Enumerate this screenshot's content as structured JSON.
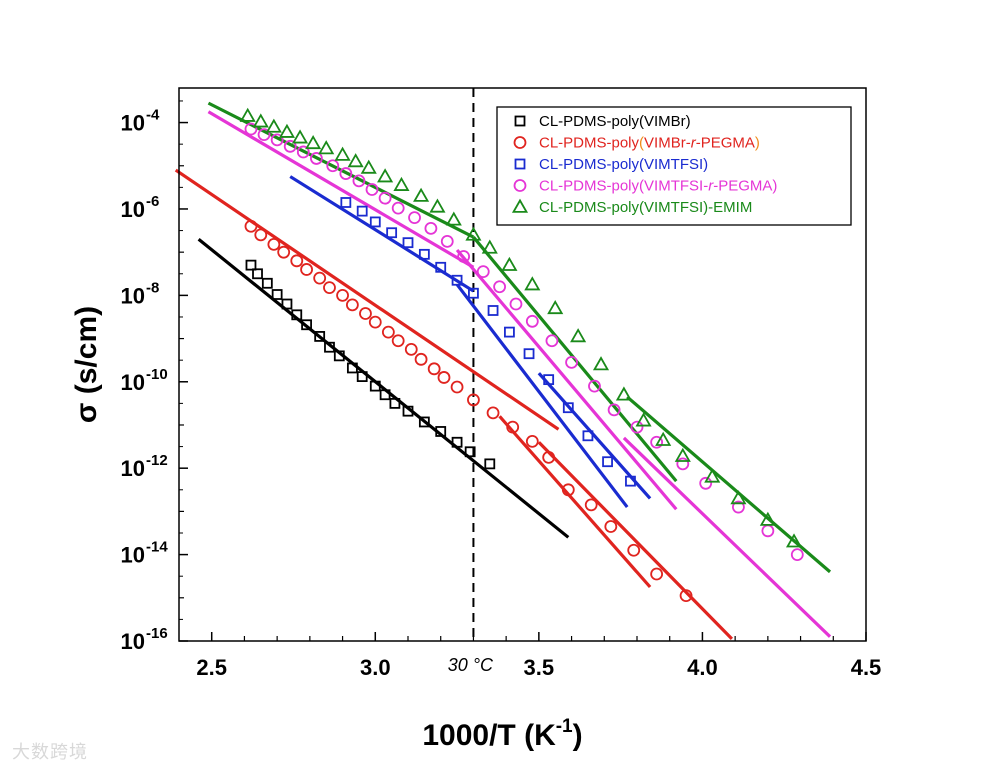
{
  "chart_data": {
    "type": "scatter",
    "title": "",
    "xlabel": "1000/T (K",
    "xlabel_sup": "-1",
    "xlabel_close": ")",
    "ylabel": "σ (s/cm)",
    "xlim": [
      2.4,
      4.5
    ],
    "ylog_exp_range": [
      -16,
      -3.2
    ],
    "xticks": [
      "2.5",
      "3.0",
      "3.5",
      "4.0",
      "4.5"
    ],
    "yticks": [
      {
        "base": "10",
        "exp": "-4",
        "value": -4
      },
      {
        "base": "10",
        "exp": "-6",
        "value": -6
      },
      {
        "base": "10",
        "exp": "-8",
        "value": -8
      },
      {
        "base": "10",
        "exp": "-10",
        "value": -10
      },
      {
        "base": "10",
        "exp": "-12",
        "value": -12
      },
      {
        "base": "10",
        "exp": "-14",
        "value": -14
      },
      {
        "base": "10",
        "exp": "-16",
        "value": -16
      }
    ],
    "vline": {
      "x": 3.3,
      "label": "30 °C"
    },
    "legend_position": "top-right",
    "series": [
      {
        "name": "CL-PDMS-poly(VIMBr)",
        "legend_parts": [
          {
            "t": "CL-PDMS-poly(VIMBr)",
            "c": "#000000",
            "i": false
          }
        ],
        "color": "#000000",
        "marker": "square",
        "x": [
          2.62,
          2.64,
          2.67,
          2.7,
          2.73,
          2.76,
          2.79,
          2.83,
          2.86,
          2.89,
          2.93,
          2.96,
          3.0,
          3.03,
          3.06,
          3.1,
          3.15,
          3.2,
          3.25,
          3.29,
          3.35
        ],
        "y": [
          -7.3,
          -7.5,
          -7.72,
          -7.98,
          -8.2,
          -8.45,
          -8.68,
          -8.95,
          -9.2,
          -9.4,
          -9.68,
          -9.88,
          -10.1,
          -10.3,
          -10.5,
          -10.68,
          -10.93,
          -11.15,
          -11.4,
          -11.62,
          -11.9
        ],
        "fits": [
          {
            "x": [
              2.46,
              3.59
            ],
            "y": [
              -6.7,
              -13.6
            ]
          }
        ]
      },
      {
        "name": "CL-PDMS-poly(VIMBr-r-PEGMA)",
        "legend_parts": [
          {
            "t": "CL-PDMS-poly",
            "c": "#e0241f",
            "i": false
          },
          {
            "t": "(",
            "c": "#f08c1a",
            "i": false
          },
          {
            "t": "VIMBr-",
            "c": "#e0241f",
            "i": false
          },
          {
            "t": "r",
            "c": "#e0241f",
            "i": true
          },
          {
            "t": "-PEGMA",
            "c": "#e0241f",
            "i": false
          },
          {
            "t": ")",
            "c": "#f08c1a",
            "i": false
          }
        ],
        "color": "#e0241f",
        "marker": "circle",
        "x": [
          2.62,
          2.65,
          2.69,
          2.72,
          2.76,
          2.79,
          2.83,
          2.86,
          2.9,
          2.93,
          2.97,
          3.0,
          3.04,
          3.07,
          3.11,
          3.14,
          3.18,
          3.21,
          3.25,
          3.3,
          3.36,
          3.42,
          3.48,
          3.53,
          3.59,
          3.66,
          3.72,
          3.79,
          3.86,
          3.95
        ],
        "y": [
          -6.4,
          -6.6,
          -6.82,
          -7.0,
          -7.2,
          -7.4,
          -7.6,
          -7.82,
          -8.0,
          -8.22,
          -8.42,
          -8.62,
          -8.85,
          -9.05,
          -9.25,
          -9.48,
          -9.7,
          -9.9,
          -10.12,
          -10.42,
          -10.72,
          -11.05,
          -11.38,
          -11.75,
          -12.5,
          -12.85,
          -13.35,
          -13.9,
          -14.45,
          -14.95
        ],
        "fits": [
          {
            "x": [
              2.39,
              3.56
            ],
            "y": [
              -5.1,
              -11.1
            ]
          },
          {
            "x": [
              3.38,
              3.84
            ],
            "y": [
              -10.8,
              -14.75
            ]
          },
          {
            "x": [
              3.5,
              4.09
            ],
            "y": [
              -11.4,
              -15.95
            ]
          }
        ]
      },
      {
        "name": "CL-PDMS-poly(VIMTFSI)",
        "legend_parts": [
          {
            "t": "CL-PDMS-poly(VIMTFSI)",
            "c": "#1a2bd0",
            "i": false
          }
        ],
        "color": "#1a2bd0",
        "marker": "square",
        "x": [
          2.91,
          2.96,
          3.0,
          3.05,
          3.1,
          3.15,
          3.2,
          3.25,
          3.3,
          3.36,
          3.41,
          3.47,
          3.53,
          3.59,
          3.65,
          3.71,
          3.78
        ],
        "y": [
          -5.85,
          -6.05,
          -6.3,
          -6.55,
          -6.78,
          -7.05,
          -7.35,
          -7.65,
          -7.95,
          -8.35,
          -8.85,
          -9.35,
          -9.95,
          -10.6,
          -11.25,
          -11.85,
          -12.3
        ],
        "fits": [
          {
            "x": [
              2.74,
              3.3
            ],
            "y": [
              -5.25,
              -7.9
            ]
          },
          {
            "x": [
              3.25,
              3.77
            ],
            "y": [
              -7.75,
              -12.9
            ]
          },
          {
            "x": [
              3.5,
              3.84
            ],
            "y": [
              -9.8,
              -12.7
            ]
          }
        ]
      },
      {
        "name": "CL-PDMS-poly(VIMTFSI-r-PEGMA)",
        "legend_parts": [
          {
            "t": "CL-PDMS-poly",
            "c": "#e535d6",
            "i": false
          },
          {
            "t": "(",
            "c": "#e535d6",
            "i": false
          },
          {
            "t": "VIMTFSI-",
            "c": "#e535d6",
            "i": false
          },
          {
            "t": "r",
            "c": "#e535d6",
            "i": true
          },
          {
            "t": "-PEGMA)",
            "c": "#e535d6",
            "i": false
          }
        ],
        "color": "#e535d6",
        "marker": "circle",
        "x": [
          2.62,
          2.66,
          2.7,
          2.74,
          2.78,
          2.82,
          2.87,
          2.91,
          2.95,
          2.99,
          3.03,
          3.07,
          3.12,
          3.17,
          3.22,
          3.27,
          3.33,
          3.38,
          3.43,
          3.48,
          3.54,
          3.6,
          3.67,
          3.73,
          3.8,
          3.86,
          3.94,
          4.01,
          4.11,
          4.2,
          4.29
        ],
        "y": [
          -4.15,
          -4.28,
          -4.4,
          -4.55,
          -4.68,
          -4.83,
          -5.0,
          -5.18,
          -5.35,
          -5.55,
          -5.75,
          -5.98,
          -6.2,
          -6.45,
          -6.75,
          -7.1,
          -7.45,
          -7.8,
          -8.2,
          -8.6,
          -9.05,
          -9.55,
          -10.1,
          -10.65,
          -11.05,
          -11.4,
          -11.9,
          -12.35,
          -12.9,
          -13.45,
          -14.0
        ],
        "fits": [
          {
            "x": [
              2.49,
              3.3
            ],
            "y": [
              -3.75,
              -7.35
            ]
          },
          {
            "x": [
              3.25,
              3.92
            ],
            "y": [
              -6.95,
              -12.95
            ]
          },
          {
            "x": [
              3.76,
              4.39
            ],
            "y": [
              -11.3,
              -15.9
            ]
          }
        ]
      },
      {
        "name": "CL-PDMS-poly(VIMTFSI)-EMIM",
        "legend_parts": [
          {
            "t": "CL-PDMS-poly(VIMTFSI)-EMIM",
            "c": "#1a8a1a",
            "i": false
          }
        ],
        "color": "#1a8a1a",
        "marker": "triangle",
        "x": [
          2.61,
          2.65,
          2.69,
          2.73,
          2.77,
          2.81,
          2.85,
          2.9,
          2.94,
          2.98,
          3.03,
          3.08,
          3.14,
          3.19,
          3.24,
          3.3,
          3.35,
          3.41,
          3.48,
          3.55,
          3.62,
          3.69,
          3.76,
          3.82,
          3.88,
          3.94,
          4.03,
          4.11,
          4.2,
          4.28
        ],
        "y": [
          -3.85,
          -3.98,
          -4.1,
          -4.22,
          -4.35,
          -4.48,
          -4.6,
          -4.75,
          -4.9,
          -5.05,
          -5.25,
          -5.45,
          -5.7,
          -5.95,
          -6.25,
          -6.6,
          -6.9,
          -7.3,
          -7.75,
          -8.3,
          -8.95,
          -9.6,
          -10.3,
          -10.9,
          -11.35,
          -11.72,
          -12.2,
          -12.7,
          -13.2,
          -13.7
        ],
        "fits": [
          {
            "x": [
              2.49,
              3.3
            ],
            "y": [
              -3.55,
              -6.65
            ]
          },
          {
            "x": [
              3.3,
              3.92
            ],
            "y": [
              -6.65,
              -12.3
            ]
          },
          {
            "x": [
              3.77,
              4.39
            ],
            "y": [
              -10.35,
              -14.4
            ]
          }
        ]
      }
    ]
  },
  "watermark": "大数跨境"
}
